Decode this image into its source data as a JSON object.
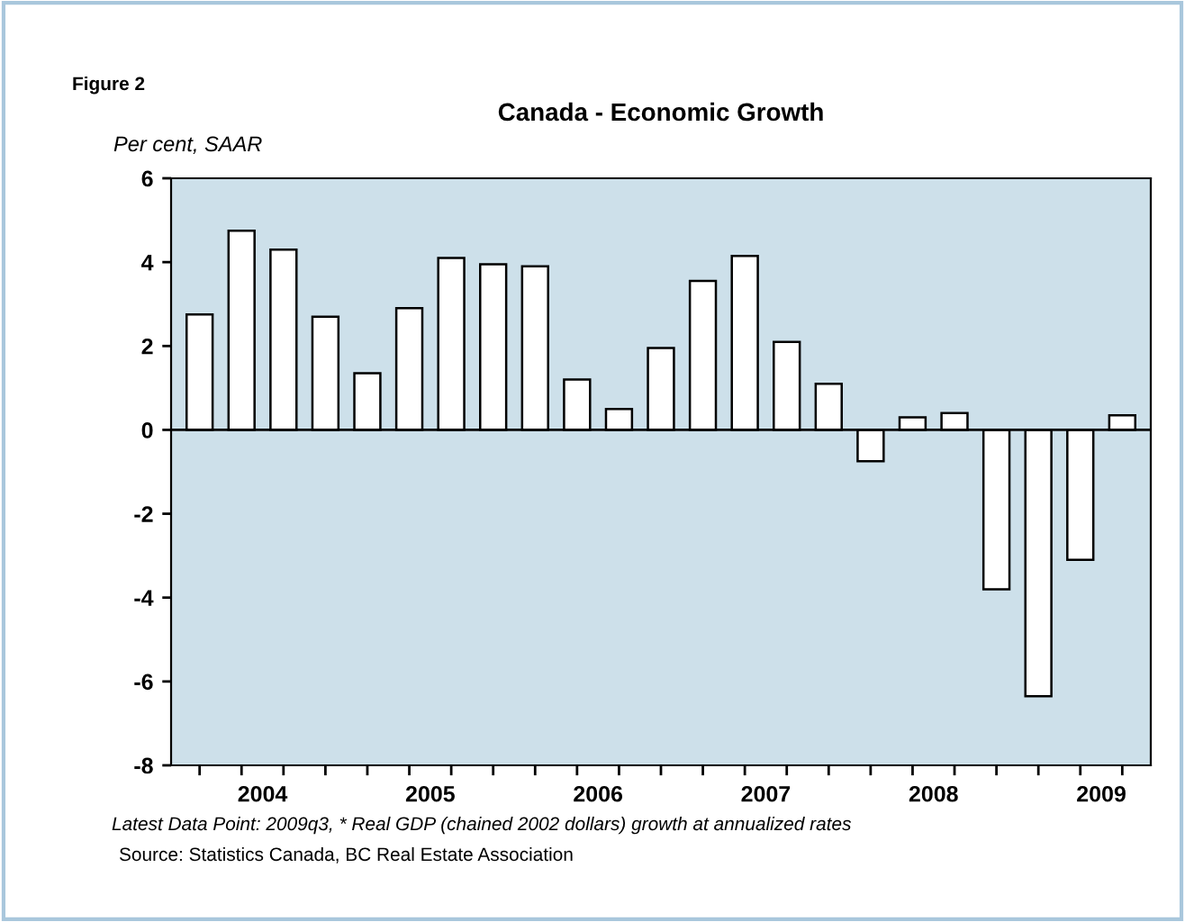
{
  "chart_data": {
    "type": "bar",
    "title": "Canada - Economic Growth",
    "subtitle": "Figure 2",
    "ylabel": "Per cent, SAAR",
    "x": [
      2004.0,
      2004.25,
      2004.5,
      2004.75,
      2005.0,
      2005.25,
      2005.5,
      2005.75,
      2006.0,
      2006.25,
      2006.5,
      2006.75,
      2007.0,
      2007.25,
      2007.5,
      2007.75,
      2008.0,
      2008.25,
      2008.5,
      2008.75,
      2009.0,
      2009.25,
      2009.5
    ],
    "values": [
      2.75,
      4.75,
      4.3,
      2.7,
      1.35,
      2.9,
      4.1,
      3.95,
      3.9,
      1.2,
      0.5,
      1.95,
      3.55,
      4.15,
      2.1,
      1.1,
      -0.75,
      0.3,
      0.4,
      -3.8,
      -6.35,
      -3.1,
      0.35
    ],
    "color": "#ffffff",
    "xlim": [
      2003.83,
      2009.67
    ],
    "ylim": [
      -8,
      6
    ],
    "yticks": [
      -8,
      -6,
      -4,
      -2,
      0,
      2,
      4,
      6
    ],
    "xticks": [
      {
        "value": 2004.0,
        "label": null
      },
      {
        "value": 2004.25,
        "label": null
      },
      {
        "value": 2004.375,
        "label": "2004"
      },
      {
        "value": 2004.5,
        "label": null
      },
      {
        "value": 2004.75,
        "label": null
      },
      {
        "value": 2005.0,
        "label": null
      },
      {
        "value": 2005.25,
        "label": null
      },
      {
        "value": 2005.375,
        "label": "2005"
      },
      {
        "value": 2005.5,
        "label": null
      },
      {
        "value": 2005.75,
        "label": null
      },
      {
        "value": 2006.0,
        "label": null
      },
      {
        "value": 2006.25,
        "label": null
      },
      {
        "value": 2006.375,
        "label": "2006"
      },
      {
        "value": 2006.5,
        "label": null
      },
      {
        "value": 2006.75,
        "label": null
      },
      {
        "value": 2007.0,
        "label": null
      },
      {
        "value": 2007.25,
        "label": null
      },
      {
        "value": 2007.375,
        "label": "2007"
      },
      {
        "value": 2007.5,
        "label": null
      },
      {
        "value": 2007.75,
        "label": null
      },
      {
        "value": 2008.0,
        "label": null
      },
      {
        "value": 2008.25,
        "label": null
      },
      {
        "value": 2008.375,
        "label": "2008"
      },
      {
        "value": 2008.5,
        "label": null
      },
      {
        "value": 2008.75,
        "label": null
      },
      {
        "value": 2009.0,
        "label": null
      },
      {
        "value": 2009.25,
        "label": null
      },
      {
        "value": 2009.375,
        "label": "2009"
      },
      {
        "value": 2009.5,
        "label": null
      }
    ],
    "ref_lines": [
      {
        "axis": "y",
        "value": 0,
        "color": "#000000"
      }
    ],
    "annotations": [
      "Latest Data Point: 2009q3, * Real GDP (chained 2002 dollars) growth at annualized rates",
      "Source: Statistics Canada, BC Real Estate Association"
    ],
    "grid": false,
    "legend": false
  }
}
